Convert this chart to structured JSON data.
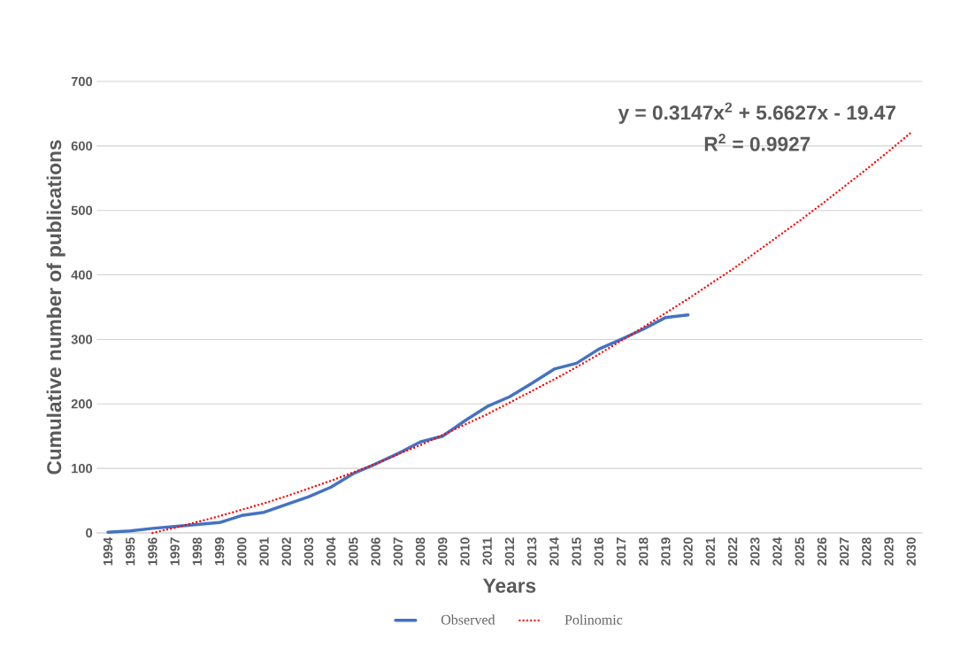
{
  "chart_data": {
    "type": "line",
    "xlabel": "Years",
    "ylabel": "Cumulative number of publications",
    "categories": [
      "1994",
      "1995",
      "1996",
      "1997",
      "1998",
      "1999",
      "2000",
      "2001",
      "2002",
      "2003",
      "2004",
      "2005",
      "2006",
      "2007",
      "2008",
      "2009",
      "2010",
      "2011",
      "2012",
      "2013",
      "2014",
      "2015",
      "2016",
      "2017",
      "2018",
      "2019",
      "2020",
      "2021",
      "2022",
      "2023",
      "2024",
      "2025",
      "2026",
      "2027",
      "2028",
      "2029",
      "2030"
    ],
    "series": [
      {
        "name": "Observed",
        "color": "#4472c4",
        "line_style": "solid",
        "values": [
          1,
          3,
          7,
          10,
          13,
          16,
          27,
          32,
          44,
          56,
          71,
          92,
          107,
          123,
          141,
          150,
          174,
          196,
          211,
          232,
          254,
          263,
          285,
          300,
          316,
          334,
          338,
          null,
          null,
          null,
          null,
          null,
          null,
          null,
          null,
          null,
          null
        ]
      },
      {
        "name": "Polinomic",
        "color": "#ff0000",
        "line_style": "dotted",
        "values": [
          null,
          null,
          0,
          8,
          17,
          26,
          36,
          46,
          57,
          69,
          81,
          94,
          107,
          122,
          136,
          152,
          168,
          184,
          202,
          220,
          238,
          257,
          277,
          298,
          319,
          341,
          363,
          386,
          409,
          434,
          459,
          484,
          510,
          537,
          564,
          592,
          621
        ]
      }
    ],
    "ylim": [
      0,
      700
    ],
    "yticks": [
      0,
      100,
      200,
      300,
      400,
      500,
      600,
      700
    ],
    "grid": "y",
    "legend": "bottom",
    "marker": "none",
    "annotations": [
      "y = 0.3147x$^{2}$ + 5.6627x - 19.47",
      "R$^{2}$ = 0.9927"
    ]
  }
}
